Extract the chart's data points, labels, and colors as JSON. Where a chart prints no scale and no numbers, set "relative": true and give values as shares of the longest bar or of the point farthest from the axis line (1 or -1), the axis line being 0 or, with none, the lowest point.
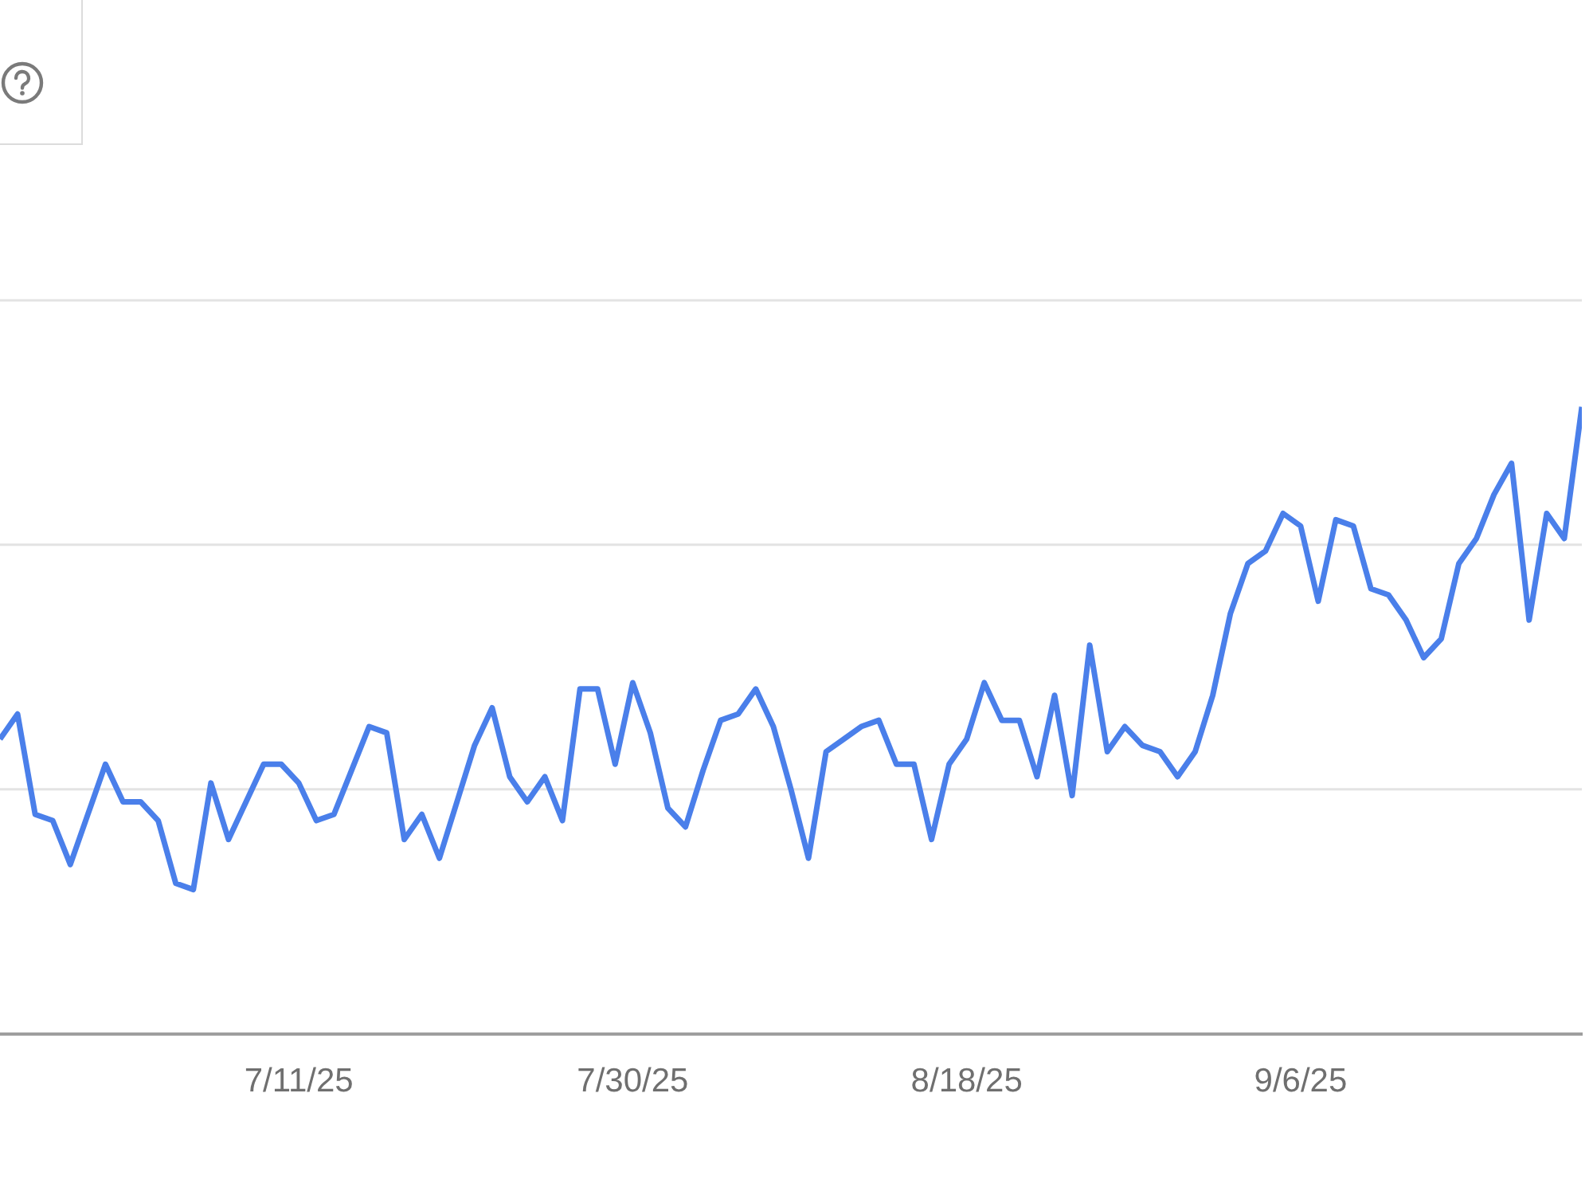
{
  "chart_data": {
    "type": "line",
    "relative": true,
    "legend": false,
    "marker": "none",
    "line_style": "solid",
    "ref_lines": [
      {
        "axis": "y",
        "value": 0.39,
        "color": "#e3e3e3"
      },
      {
        "axis": "y",
        "value": 0.78,
        "color": "#e3e3e3"
      },
      {
        "axis": "y",
        "value": 1.17,
        "color": "#e3e3e3"
      }
    ],
    "xlim": [
      "2025-06-24",
      "2025-09-22"
    ],
    "xticks": [
      {
        "value": "2025-07-11",
        "label": "7/11/25"
      },
      {
        "value": "2025-07-30",
        "label": "7/30/25"
      },
      {
        "value": "2025-08-18",
        "label": "8/18/25"
      },
      {
        "value": "2025-09-06",
        "label": "9/6/25"
      }
    ],
    "series": [
      {
        "color": "#4a7fea",
        "x": [
          "2025-06-24",
          "2025-06-25",
          "2025-06-26",
          "2025-06-27",
          "2025-06-28",
          "2025-06-29",
          "2025-06-30",
          "2025-07-01",
          "2025-07-02",
          "2025-07-03",
          "2025-07-04",
          "2025-07-05",
          "2025-07-06",
          "2025-07-07",
          "2025-07-08",
          "2025-07-09",
          "2025-07-10",
          "2025-07-11",
          "2025-07-12",
          "2025-07-13",
          "2025-07-14",
          "2025-07-15",
          "2025-07-16",
          "2025-07-17",
          "2025-07-18",
          "2025-07-19",
          "2025-07-20",
          "2025-07-21",
          "2025-07-22",
          "2025-07-23",
          "2025-07-24",
          "2025-07-25",
          "2025-07-26",
          "2025-07-27",
          "2025-07-28",
          "2025-07-29",
          "2025-07-30",
          "2025-07-31",
          "2025-08-01",
          "2025-08-02",
          "2025-08-03",
          "2025-08-04",
          "2025-08-05",
          "2025-08-06",
          "2025-08-07",
          "2025-08-08",
          "2025-08-09",
          "2025-08-10",
          "2025-08-11",
          "2025-08-12",
          "2025-08-13",
          "2025-08-14",
          "2025-08-15",
          "2025-08-16",
          "2025-08-17",
          "2025-08-18",
          "2025-08-19",
          "2025-08-20",
          "2025-08-21",
          "2025-08-22",
          "2025-08-23",
          "2025-08-24",
          "2025-08-25",
          "2025-08-26",
          "2025-08-27",
          "2025-08-28",
          "2025-08-29",
          "2025-08-30",
          "2025-08-31",
          "2025-09-01",
          "2025-09-02",
          "2025-09-03",
          "2025-09-04",
          "2025-09-05",
          "2025-09-06",
          "2025-09-07",
          "2025-09-08",
          "2025-09-09",
          "2025-09-10",
          "2025-09-11",
          "2025-09-12",
          "2025-09-13",
          "2025-09-14",
          "2025-09-15",
          "2025-09-16",
          "2025-09-17",
          "2025-09-18",
          "2025-09-19",
          "2025-09-20",
          "2025-09-21",
          "2025-09-22"
        ],
        "values": [
          0.47,
          0.51,
          0.35,
          0.34,
          0.27,
          0.35,
          0.43,
          0.37,
          0.37,
          0.34,
          0.24,
          0.23,
          0.4,
          0.31,
          0.37,
          0.43,
          0.43,
          0.4,
          0.34,
          0.35,
          0.42,
          0.49,
          0.48,
          0.31,
          0.35,
          0.28,
          0.37,
          0.46,
          0.52,
          0.41,
          0.37,
          0.41,
          0.34,
          0.55,
          0.55,
          0.43,
          0.56,
          0.48,
          0.36,
          0.33,
          0.42,
          0.5,
          0.51,
          0.55,
          0.49,
          0.39,
          0.28,
          0.45,
          0.47,
          0.49,
          0.5,
          0.43,
          0.43,
          0.31,
          0.43,
          0.47,
          0.56,
          0.5,
          0.5,
          0.41,
          0.54,
          0.38,
          0.62,
          0.45,
          0.49,
          0.46,
          0.45,
          0.41,
          0.45,
          0.54,
          0.67,
          0.75,
          0.77,
          0.83,
          0.81,
          0.69,
          0.82,
          0.81,
          0.71,
          0.7,
          0.66,
          0.6,
          0.63,
          0.75,
          0.79,
          0.86,
          0.91,
          0.66,
          0.83,
          0.79,
          1
        ]
      }
    ]
  }
}
